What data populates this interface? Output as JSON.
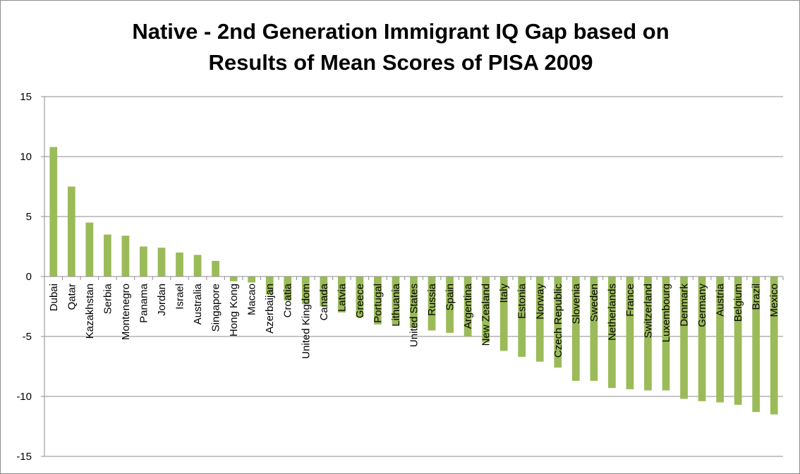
{
  "chart_data": {
    "type": "bar",
    "title_lines": [
      "Native - 2nd Generation Immigrant IQ Gap based on",
      "Results of Mean Scores of PISA 2009"
    ],
    "xlabel": "",
    "ylabel": "",
    "ylim": [
      -15,
      15
    ],
    "yticks": [
      15,
      10,
      5,
      0,
      -5,
      -10,
      -15
    ],
    "grid": true,
    "legend": "none",
    "bar_color": "#9BBB59",
    "categories": [
      "Dubai",
      "Qatar",
      "Kazakhstan",
      "Serbia",
      "Montenegro",
      "Panama",
      "Jordan",
      "Israel",
      "Australia",
      "Singapore",
      "Hong Kong",
      "Macao",
      "Azerbaijan",
      "Croatia",
      "United Kingdom",
      "Canada",
      "Latvia",
      "Greece",
      "Portugal",
      "Lithuania",
      "United States",
      "Russia",
      "Spain",
      "Argentina",
      "New Zealand",
      "Italy",
      "Estonia",
      "Norway",
      "Czech Republic",
      "Slovenia",
      "Sweden",
      "Netherlands",
      "France",
      "Switzerland",
      "Luxembourg",
      "Denmark",
      "Germany",
      "Austria",
      "Belgium",
      "Brazil",
      "Mexico"
    ],
    "values": [
      10.8,
      7.5,
      4.5,
      3.5,
      3.4,
      2.5,
      2.4,
      2.0,
      1.8,
      1.3,
      -0.4,
      -0.5,
      -1.5,
      -2.0,
      -2.3,
      -2.5,
      -3.0,
      -3.4,
      -4.0,
      -4.0,
      -4.3,
      -4.5,
      -4.7,
      -5.0,
      -5.5,
      -6.2,
      -6.7,
      -7.1,
      -7.6,
      -8.7,
      -8.7,
      -9.3,
      -9.4,
      -9.5,
      -9.5,
      -10.2,
      -10.4,
      -10.5,
      -10.7,
      -11.3,
      -11.5
    ]
  }
}
